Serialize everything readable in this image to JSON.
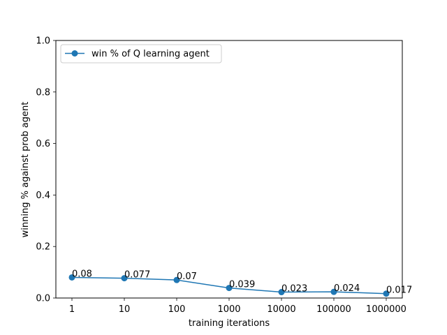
{
  "chart_data": {
    "type": "line",
    "title": "",
    "xlabel": "training iterations",
    "ylabel": "winning % against prob agent",
    "categories": [
      "1",
      "10",
      "100",
      "1000",
      "10000",
      "100000",
      "1000000"
    ],
    "series": [
      {
        "name": "win % of Q learning agent",
        "color": "#1f77b4",
        "values": [
          0.08,
          0.077,
          0.07,
          0.039,
          0.023,
          0.024,
          0.017
        ],
        "labels": [
          "0.08",
          "0.077",
          "0.07",
          "0.039",
          "0.023",
          "0.024",
          "0.017"
        ]
      }
    ],
    "ylim": [
      0.0,
      1.0
    ],
    "yticks": [
      "0.0",
      "0.2",
      "0.4",
      "0.6",
      "0.8",
      "1.0"
    ],
    "grid": false,
    "legend_position": "upper-left"
  }
}
